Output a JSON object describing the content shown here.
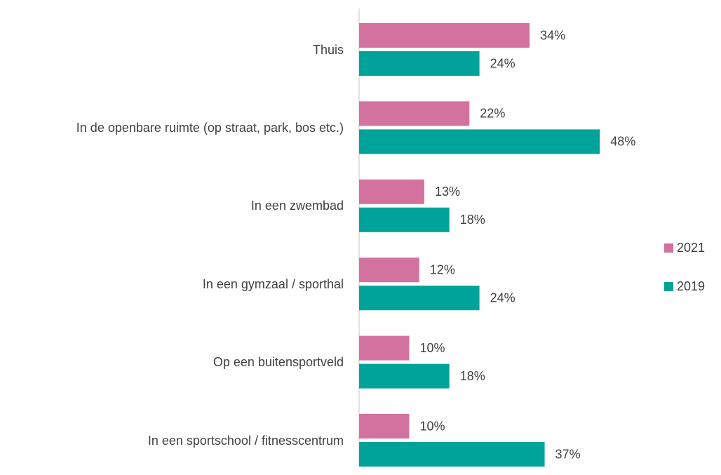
{
  "chart_data": {
    "type": "barh",
    "categories": [
      "Thuis",
      "In de openbare ruimte (op straat, park, bos etc.)",
      "In een zwembad",
      "In een gymzaal / sporthal",
      "Op een buitensportveld",
      "In een sportschool / fitnesscentrum"
    ],
    "series": [
      {
        "name": "2021",
        "color": "#d4729f",
        "values": [
          34,
          22,
          13,
          12,
          10,
          10
        ],
        "value_labels": [
          "34%",
          "22%",
          "13%",
          "12%",
          "10%",
          "10%"
        ]
      },
      {
        "name": "2019",
        "color": "#00a39a",
        "values": [
          24,
          48,
          18,
          24,
          18,
          37
        ],
        "value_labels": [
          "24%",
          "48%",
          "18%",
          "24%",
          "18%",
          "37%"
        ]
      }
    ],
    "legend": "right"
  }
}
